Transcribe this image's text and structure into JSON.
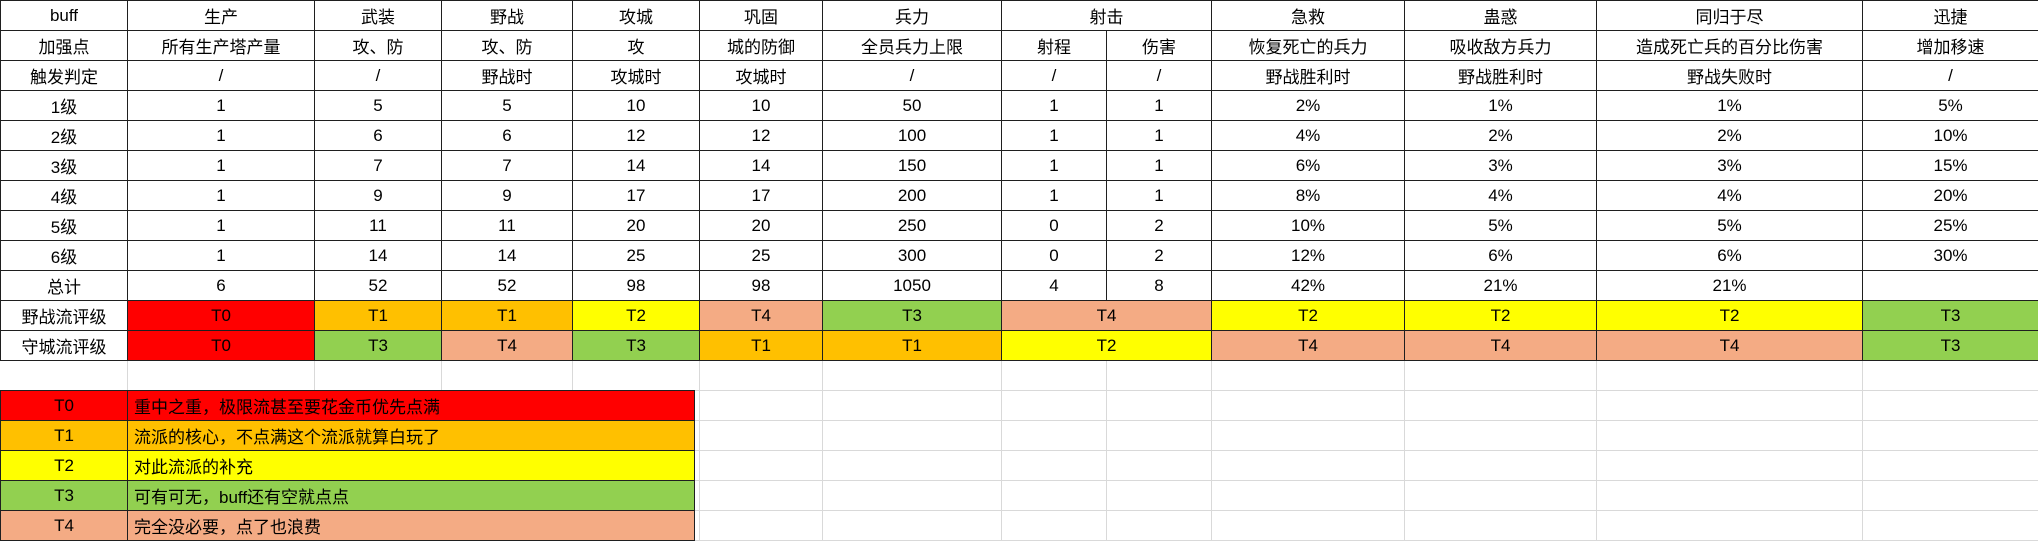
{
  "tier_colors": {
    "T0": "#ff0000",
    "T1": "#ffc000",
    "T2": "#ffff00",
    "T3": "#92d050",
    "T4": "#f4ab84"
  },
  "buff_table": {
    "corner_label": "buff",
    "header_cells": [
      {
        "text": "生产",
        "span": 1
      },
      {
        "text": "武装",
        "span": 1
      },
      {
        "text": "野战",
        "span": 1
      },
      {
        "text": "攻城",
        "span": 1
      },
      {
        "text": "巩固",
        "span": 1
      },
      {
        "text": "兵力",
        "span": 1
      },
      {
        "text": "射击",
        "span": 2
      },
      {
        "text": "急救",
        "span": 1
      },
      {
        "text": "蛊惑",
        "span": 1
      },
      {
        "text": "同归于尽",
        "span": 1
      },
      {
        "text": "迅捷",
        "span": 1
      }
    ],
    "rows": [
      {
        "label": "加强点",
        "cells": [
          "所有生产塔产量",
          "攻、防",
          "攻、防",
          "攻",
          "城的防御",
          "全员兵力上限",
          "射程",
          "伤害",
          "恢复死亡的兵力",
          "吸收敌方兵力",
          "造成死亡兵的百分比伤害",
          "增加移速"
        ]
      },
      {
        "label": "触发判定",
        "cells": [
          "/",
          "/",
          "野战时",
          "攻城时",
          "攻城时",
          "/",
          "/",
          "/",
          "野战胜利时",
          "野战胜利时",
          "野战失败时",
          "/"
        ]
      },
      {
        "label": "1级",
        "cells": [
          "1",
          "5",
          "5",
          "10",
          "10",
          "50",
          "1",
          "1",
          "2%",
          "1%",
          "1%",
          "5%"
        ]
      },
      {
        "label": "2级",
        "cells": [
          "1",
          "6",
          "6",
          "12",
          "12",
          "100",
          "1",
          "1",
          "4%",
          "2%",
          "2%",
          "10%"
        ]
      },
      {
        "label": "3级",
        "cells": [
          "1",
          "7",
          "7",
          "14",
          "14",
          "150",
          "1",
          "1",
          "6%",
          "3%",
          "3%",
          "15%"
        ]
      },
      {
        "label": "4级",
        "cells": [
          "1",
          "9",
          "9",
          "17",
          "17",
          "200",
          "1",
          "1",
          "8%",
          "4%",
          "4%",
          "20%"
        ]
      },
      {
        "label": "5级",
        "cells": [
          "1",
          "11",
          "11",
          "20",
          "20",
          "250",
          "0",
          "2",
          "10%",
          "5%",
          "5%",
          "25%"
        ]
      },
      {
        "label": "6级",
        "cells": [
          "1",
          "14",
          "14",
          "25",
          "25",
          "300",
          "0",
          "2",
          "12%",
          "6%",
          "6%",
          "30%"
        ]
      },
      {
        "label": "总计",
        "cells": [
          "6",
          "52",
          "52",
          "98",
          "98",
          "1050",
          "4",
          "8",
          "42%",
          "21%",
          "21%",
          ""
        ]
      }
    ],
    "rating_rows": [
      {
        "label": "野战流评级",
        "cells": [
          {
            "tier": "T0",
            "span": 1
          },
          {
            "tier": "T1",
            "span": 1
          },
          {
            "tier": "T1",
            "span": 1
          },
          {
            "tier": "T2",
            "span": 1
          },
          {
            "tier": "T4",
            "span": 1
          },
          {
            "tier": "T3",
            "span": 1
          },
          {
            "tier": "T4",
            "span": 2
          },
          {
            "tier": "T2",
            "span": 1
          },
          {
            "tier": "T2",
            "span": 1
          },
          {
            "tier": "T2",
            "span": 1
          },
          {
            "tier": "T3",
            "span": 1
          }
        ]
      },
      {
        "label": "守城流评级",
        "cells": [
          {
            "tier": "T0",
            "span": 1
          },
          {
            "tier": "T3",
            "span": 1
          },
          {
            "tier": "T4",
            "span": 1
          },
          {
            "tier": "T3",
            "span": 1
          },
          {
            "tier": "T1",
            "span": 1
          },
          {
            "tier": "T1",
            "span": 1
          },
          {
            "tier": "T2",
            "span": 2
          },
          {
            "tier": "T4",
            "span": 1
          },
          {
            "tier": "T4",
            "span": 1
          },
          {
            "tier": "T4",
            "span": 1
          },
          {
            "tier": "T3",
            "span": 1
          }
        ]
      }
    ]
  },
  "legend": [
    {
      "tier": "T0",
      "desc": "重中之重，极限流甚至要花金币优先点满"
    },
    {
      "tier": "T1",
      "desc": "流派的核心，不点满这个流派就算白玩了"
    },
    {
      "tier": "T2",
      "desc": "对此流派的补充"
    },
    {
      "tier": "T3",
      "desc": "可有可无，buff还有空就点点"
    },
    {
      "tier": "T4",
      "desc": "完全没必要，点了也浪费"
    }
  ]
}
